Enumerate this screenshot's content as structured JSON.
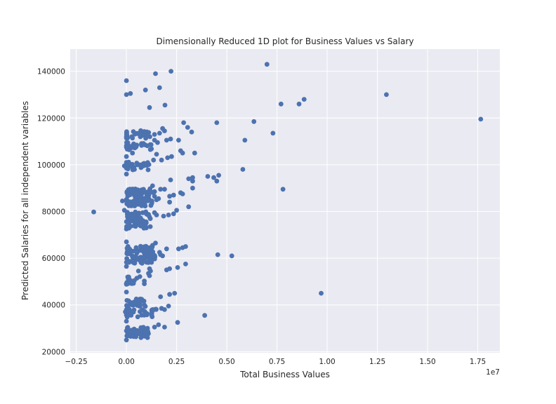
{
  "chart_data": {
    "type": "scatter",
    "title": "Dimensionally Reduced 1D plot for Business Values vs Salary",
    "xlabel": "Total Business Values",
    "ylabel": "Predicted Salaries for all independent variables",
    "x_offset_text": "1e7",
    "x_multiplier": 10000000,
    "xlim": [
      -0.28,
      1.86
    ],
    "ylim": [
      19500,
      149500
    ],
    "xticks": [
      -0.25,
      0.0,
      0.25,
      0.5,
      0.75,
      1.0,
      1.25,
      1.5,
      1.75
    ],
    "xtick_labels": [
      "−0.25",
      "0.00",
      "0.25",
      "0.50",
      "0.75",
      "1.00",
      "1.25",
      "1.50",
      "1.75"
    ],
    "yticks": [
      20000,
      40000,
      60000,
      80000,
      100000,
      120000,
      140000
    ],
    "ytick_labels": [
      "20000",
      "40000",
      "60000",
      "80000",
      "100000",
      "120000",
      "140000"
    ],
    "grid": true,
    "marker_color": "#4c72b0",
    "background_color": "#eaeaf2",
    "clusters": [
      {
        "y": 27500,
        "x_max": 0.12,
        "n": 30
      },
      {
        "y": 29000,
        "x_max": 0.1,
        "n": 20
      },
      {
        "y": 36500,
        "x_max": 0.15,
        "n": 35
      },
      {
        "y": 41000,
        "x_max": 0.1,
        "n": 25
      },
      {
        "y": 50500,
        "x_max": 0.09,
        "n": 18
      },
      {
        "y": 59500,
        "x_max": 0.15,
        "n": 45
      },
      {
        "y": 63500,
        "x_max": 0.14,
        "n": 40
      },
      {
        "y": 74500,
        "x_max": 0.12,
        "n": 35
      },
      {
        "y": 78500,
        "x_max": 0.12,
        "n": 28
      },
      {
        "y": 84000,
        "x_max": 0.13,
        "n": 50
      },
      {
        "y": 88000,
        "x_max": 0.13,
        "n": 45
      },
      {
        "y": 99500,
        "x_max": 0.12,
        "n": 30
      },
      {
        "y": 108000,
        "x_max": 0.13,
        "n": 30
      },
      {
        "y": 113000,
        "x_max": 0.12,
        "n": 30
      }
    ],
    "points": [
      {
        "x": -0.163,
        "y": 79800
      },
      {
        "x": 0.0,
        "y": 136000
      },
      {
        "x": 0.0,
        "y": 130000
      },
      {
        "x": 0.02,
        "y": 130500
      },
      {
        "x": 0.095,
        "y": 132000
      },
      {
        "x": 0.145,
        "y": 139000
      },
      {
        "x": 0.222,
        "y": 140000
      },
      {
        "x": 0.165,
        "y": 133000
      },
      {
        "x": 0.115,
        "y": 124500
      },
      {
        "x": 0.192,
        "y": 125500
      },
      {
        "x": 0.285,
        "y": 118000
      },
      {
        "x": 0.305,
        "y": 116000
      },
      {
        "x": 0.325,
        "y": 114000
      },
      {
        "x": 0.26,
        "y": 110500
      },
      {
        "x": 0.27,
        "y": 106000
      },
      {
        "x": 0.28,
        "y": 105000
      },
      {
        "x": 0.34,
        "y": 105000
      },
      {
        "x": 0.45,
        "y": 118000
      },
      {
        "x": 0.635,
        "y": 118500
      },
      {
        "x": 0.73,
        "y": 113500
      },
      {
        "x": 0.59,
        "y": 110500
      },
      {
        "x": 0.7,
        "y": 143000
      },
      {
        "x": 0.77,
        "y": 126000
      },
      {
        "x": 0.86,
        "y": 126000
      },
      {
        "x": 0.885,
        "y": 128000
      },
      {
        "x": 1.295,
        "y": 130000
      },
      {
        "x": 1.765,
        "y": 119500
      },
      {
        "x": 0.78,
        "y": 89500
      },
      {
        "x": 0.58,
        "y": 98000
      },
      {
        "x": 0.405,
        "y": 95000
      },
      {
        "x": 0.435,
        "y": 94500
      },
      {
        "x": 0.45,
        "y": 93000
      },
      {
        "x": 0.46,
        "y": 95500
      },
      {
        "x": 0.33,
        "y": 94500
      },
      {
        "x": 0.33,
        "y": 93000
      },
      {
        "x": 0.31,
        "y": 94000
      },
      {
        "x": 0.33,
        "y": 90000
      },
      {
        "x": 0.22,
        "y": 93500
      },
      {
        "x": 0.27,
        "y": 88000
      },
      {
        "x": 0.28,
        "y": 87500
      },
      {
        "x": 0.235,
        "y": 87000
      },
      {
        "x": 0.215,
        "y": 86500
      },
      {
        "x": 0.215,
        "y": 84000
      },
      {
        "x": 0.31,
        "y": 82000
      },
      {
        "x": 0.25,
        "y": 80500
      },
      {
        "x": 0.235,
        "y": 79000
      },
      {
        "x": 0.21,
        "y": 78500
      },
      {
        "x": 0.205,
        "y": 103000
      },
      {
        "x": 0.225,
        "y": 103500
      },
      {
        "x": 0.175,
        "y": 102000
      },
      {
        "x": 0.2,
        "y": 110500
      },
      {
        "x": 0.22,
        "y": 111000
      },
      {
        "x": 0.18,
        "y": 115500
      },
      {
        "x": 0.19,
        "y": 114500
      },
      {
        "x": 0.455,
        "y": 61500
      },
      {
        "x": 0.525,
        "y": 61000
      },
      {
        "x": 0.295,
        "y": 65000
      },
      {
        "x": 0.28,
        "y": 64500
      },
      {
        "x": 0.26,
        "y": 64000
      },
      {
        "x": 0.2,
        "y": 64000
      },
      {
        "x": 0.295,
        "y": 57500
      },
      {
        "x": 0.255,
        "y": 56000
      },
      {
        "x": 0.215,
        "y": 55500
      },
      {
        "x": 0.2,
        "y": 55000
      },
      {
        "x": 0.255,
        "y": 32500
      },
      {
        "x": 0.39,
        "y": 35500
      },
      {
        "x": 0.97,
        "y": 45000
      },
      {
        "x": 0.24,
        "y": 45000
      },
      {
        "x": 0.215,
        "y": 44500
      },
      {
        "x": 0.21,
        "y": 39500
      },
      {
        "x": 0.17,
        "y": 43500
      },
      {
        "x": 0.19,
        "y": 30500
      },
      {
        "x": 0.16,
        "y": 31500
      },
      {
        "x": 0.14,
        "y": 30500
      },
      {
        "x": 0.105,
        "y": 30000
      },
      {
        "x": 0.1,
        "y": 29000
      },
      {
        "x": 0.17,
        "y": 61500
      },
      {
        "x": 0.165,
        "y": 62500
      },
      {
        "x": 0.18,
        "y": 61000
      },
      {
        "x": 0.19,
        "y": 38000
      },
      {
        "x": 0.175,
        "y": 38500
      },
      {
        "x": 0.14,
        "y": 38000
      },
      {
        "x": 0.13,
        "y": 38000
      },
      {
        "x": 0.11,
        "y": 53500
      },
      {
        "x": 0.115,
        "y": 55500
      },
      {
        "x": 0.12,
        "y": 54500
      },
      {
        "x": 0.115,
        "y": 52500
      },
      {
        "x": 0.06,
        "y": 54500
      },
      {
        "x": 0.145,
        "y": 66500
      },
      {
        "x": 0.13,
        "y": 65500
      },
      {
        "x": 0.185,
        "y": 78000
      },
      {
        "x": 0.15,
        "y": 78500
      },
      {
        "x": 0.14,
        "y": 79500
      },
      {
        "x": 0.16,
        "y": 85500
      },
      {
        "x": 0.15,
        "y": 85000
      },
      {
        "x": 0.14,
        "y": 86500
      },
      {
        "x": 0.17,
        "y": 89500
      },
      {
        "x": 0.19,
        "y": 89500
      },
      {
        "x": 0.13,
        "y": 91000
      },
      {
        "x": 0.14,
        "y": 88500
      },
      {
        "x": 0.135,
        "y": 102000
      },
      {
        "x": 0.15,
        "y": 104500
      },
      {
        "x": 0.14,
        "y": 110500
      },
      {
        "x": 0.155,
        "y": 109500
      },
      {
        "x": 0.14,
        "y": 113000
      },
      {
        "x": 0.165,
        "y": 113500
      },
      {
        "x": 0.085,
        "y": 99500
      },
      {
        "x": 0.095,
        "y": 100000
      },
      {
        "x": 0.04,
        "y": 98000
      },
      {
        "x": 0.03,
        "y": 105000
      },
      {
        "x": -0.02,
        "y": 84500
      },
      {
        "x": -0.01,
        "y": 80500
      },
      {
        "x": -0.01,
        "y": 99500
      },
      {
        "x": 0.0,
        "y": 96000
      },
      {
        "x": 0.0,
        "y": 101000
      },
      {
        "x": 0.0,
        "y": 103500
      },
      {
        "x": 0.0,
        "y": 72500
      },
      {
        "x": 0.0,
        "y": 25000
      },
      {
        "x": 0.0,
        "y": 49000
      },
      {
        "x": 0.0,
        "y": 56500
      },
      {
        "x": 0.0,
        "y": 67000
      },
      {
        "x": -0.005,
        "y": 37000
      },
      {
        "x": 0.0,
        "y": 33000
      },
      {
        "x": 0.0,
        "y": 45500
      }
    ]
  }
}
